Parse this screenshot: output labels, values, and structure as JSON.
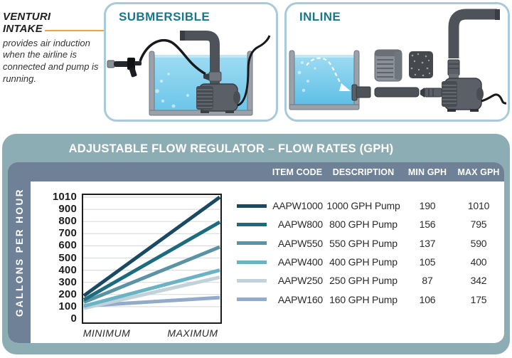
{
  "venturi_note": {
    "title_line1": "VENTURI",
    "title_line2": "INTAKE",
    "body": "provides air induction when the airline is connected and pump is running."
  },
  "panels": {
    "submersible_title": "SUBMERSIBLE",
    "inline_title": "INLINE"
  },
  "flow_section": {
    "title": "ADJUSTABLE FLOW REGULATOR – FLOW RATES (GPH)",
    "y_axis_label": "GALLONS PER HOUR",
    "columns": [
      "ITEM CODE",
      "DESCRIPTION",
      "MIN GPH",
      "MAX GPH"
    ],
    "x_labels": [
      "MINIMUM",
      "MAXIMUM"
    ]
  },
  "chart_data": {
    "type": "line",
    "title": "ADJUSTABLE FLOW REGULATOR – FLOW RATES (GPH)",
    "xlabel_categories": [
      "MINIMUM",
      "MAXIMUM"
    ],
    "ylabel": "GALLONS PER HOUR",
    "yticks": [
      0,
      100,
      200,
      300,
      400,
      500,
      600,
      700,
      800,
      900,
      1010
    ],
    "ylim": [
      0,
      1010
    ],
    "grid": true,
    "legend_position": "right-table",
    "series": [
      {
        "name": "AAPW1000",
        "description": "1000 GPH Pump",
        "min_gph": 190,
        "max_gph": 1010,
        "color": "#1A4A63"
      },
      {
        "name": "AAPW800",
        "description": "800 GPH Pump",
        "min_gph": 156,
        "max_gph": 795,
        "color": "#1C6B7E"
      },
      {
        "name": "AAPW550",
        "description": "550 GPH Pump",
        "min_gph": 137,
        "max_gph": 590,
        "color": "#5A93A3"
      },
      {
        "name": "AAPW400",
        "description": "400 GPH Pump",
        "min_gph": 105,
        "max_gph": 400,
        "color": "#69B3C4"
      },
      {
        "name": "AAPW250",
        "description": "250 GPH Pump",
        "min_gph": 87,
        "max_gph": 342,
        "color": "#C2D2DB"
      },
      {
        "name": "AAPW160",
        "description": "160 GPH Pump",
        "min_gph": 106,
        "max_gph": 175,
        "color": "#91ABC9"
      }
    ]
  },
  "colors": {
    "teal_heading": "#16798B",
    "panel_border": "#A9CAD8",
    "sage_band": "#8DADB4",
    "slate_band": "#6F8196",
    "orange_callout": "#F2A43C",
    "gridline": "#D9DDDF"
  }
}
